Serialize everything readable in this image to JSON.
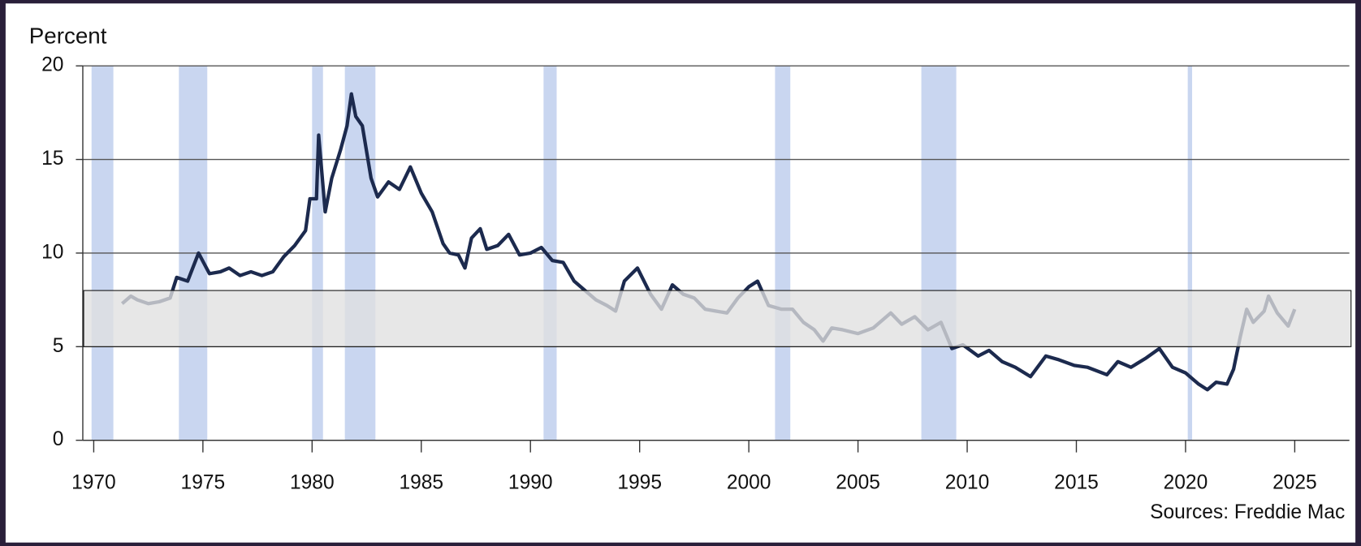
{
  "chart_data": {
    "type": "line",
    "y_axis_label": "Percent",
    "source": "Sources: Freddie Mac",
    "x": [
      1971.3,
      1971.7,
      1972.0,
      1972.5,
      1973.0,
      1973.5,
      1973.8,
      1974.3,
      1974.8,
      1975.3,
      1975.8,
      1976.2,
      1976.7,
      1977.2,
      1977.7,
      1978.2,
      1978.7,
      1979.2,
      1979.7,
      1979.9,
      1980.2,
      1980.3,
      1980.6,
      1980.9,
      1981.3,
      1981.6,
      1981.8,
      1982.0,
      1982.3,
      1982.7,
      1983.0,
      1983.5,
      1984.0,
      1984.5,
      1985.0,
      1985.5,
      1986.0,
      1986.3,
      1986.7,
      1987.0,
      1987.3,
      1987.7,
      1988.0,
      1988.5,
      1989.0,
      1989.5,
      1990.0,
      1990.5,
      1991.0,
      1991.5,
      1992.0,
      1992.5,
      1993.0,
      1993.5,
      1993.9,
      1994.3,
      1994.9,
      1995.5,
      1996.0,
      1996.5,
      1997.0,
      1997.5,
      1998.0,
      1998.5,
      1999.0,
      1999.5,
      2000.0,
      2000.4,
      2000.9,
      2001.5,
      2002.0,
      2002.5,
      2003.0,
      2003.4,
      2003.8,
      2004.3,
      2005.0,
      2005.7,
      2006.5,
      2007.0,
      2007.6,
      2008.2,
      2008.8,
      2009.3,
      2009.8,
      2010.5,
      2011.0,
      2011.6,
      2012.2,
      2012.9,
      2013.6,
      2014.2,
      2014.9,
      2015.5,
      2016.4,
      2016.9,
      2017.5,
      2018.2,
      2018.8,
      2019.4,
      2020.0,
      2020.6,
      2021.0,
      2021.4,
      2021.9,
      2022.2,
      2022.5,
      2022.8,
      2023.1,
      2023.6,
      2023.8,
      2024.2,
      2024.7,
      2025.0
    ],
    "series": [
      {
        "color": "#1c2a4e",
        "values": [
          7.3,
          7.7,
          7.5,
          7.3,
          7.4,
          7.6,
          8.7,
          8.5,
          10.0,
          8.9,
          9.0,
          9.2,
          8.8,
          9.0,
          8.8,
          9.0,
          9.8,
          10.4,
          11.2,
          12.9,
          12.9,
          16.3,
          12.2,
          14.0,
          15.5,
          16.8,
          18.5,
          17.3,
          16.8,
          14.0,
          13.0,
          13.8,
          13.4,
          14.6,
          13.2,
          12.2,
          10.5,
          10.0,
          9.9,
          9.2,
          10.8,
          11.3,
          10.2,
          10.4,
          11.0,
          9.9,
          10.0,
          10.3,
          9.6,
          9.5,
          8.5,
          8.0,
          7.5,
          7.2,
          6.9,
          8.5,
          9.2,
          7.8,
          7.0,
          8.3,
          7.8,
          7.6,
          7.0,
          6.9,
          6.8,
          7.6,
          8.2,
          8.5,
          7.2,
          7.0,
          7.0,
          6.3,
          5.9,
          5.3,
          6.0,
          5.9,
          5.7,
          6.0,
          6.8,
          6.2,
          6.6,
          5.9,
          6.3,
          4.9,
          5.1,
          4.5,
          4.8,
          4.2,
          3.9,
          3.4,
          4.5,
          4.3,
          4.0,
          3.9,
          3.5,
          4.2,
          3.9,
          4.4,
          4.9,
          3.9,
          3.6,
          3.0,
          2.7,
          3.1,
          3.0,
          3.8,
          5.5,
          7.0,
          6.3,
          6.9,
          7.7,
          6.8,
          6.1,
          7.0
        ]
      }
    ],
    "recessions": [
      [
        1969.9,
        1970.9
      ],
      [
        1973.9,
        1975.2
      ],
      [
        1980.0,
        1980.5
      ],
      [
        1981.5,
        1982.9
      ],
      [
        1990.6,
        1991.2
      ],
      [
        2001.2,
        2001.9
      ],
      [
        2007.9,
        2009.5
      ],
      [
        2020.1,
        2020.3
      ]
    ],
    "recession_color": "#c9d6f0",
    "band": [
      5,
      8
    ],
    "band_color": "#e0e0e0",
    "xlim": [
      1969.5,
      2027.5
    ],
    "xticks": [
      1970,
      1975,
      1980,
      1985,
      1990,
      1995,
      2000,
      2005,
      2010,
      2015,
      2020,
      2025
    ],
    "ylim": [
      0,
      20
    ],
    "yticks": [
      0,
      5,
      10,
      15,
      20
    ],
    "grid": true
  }
}
